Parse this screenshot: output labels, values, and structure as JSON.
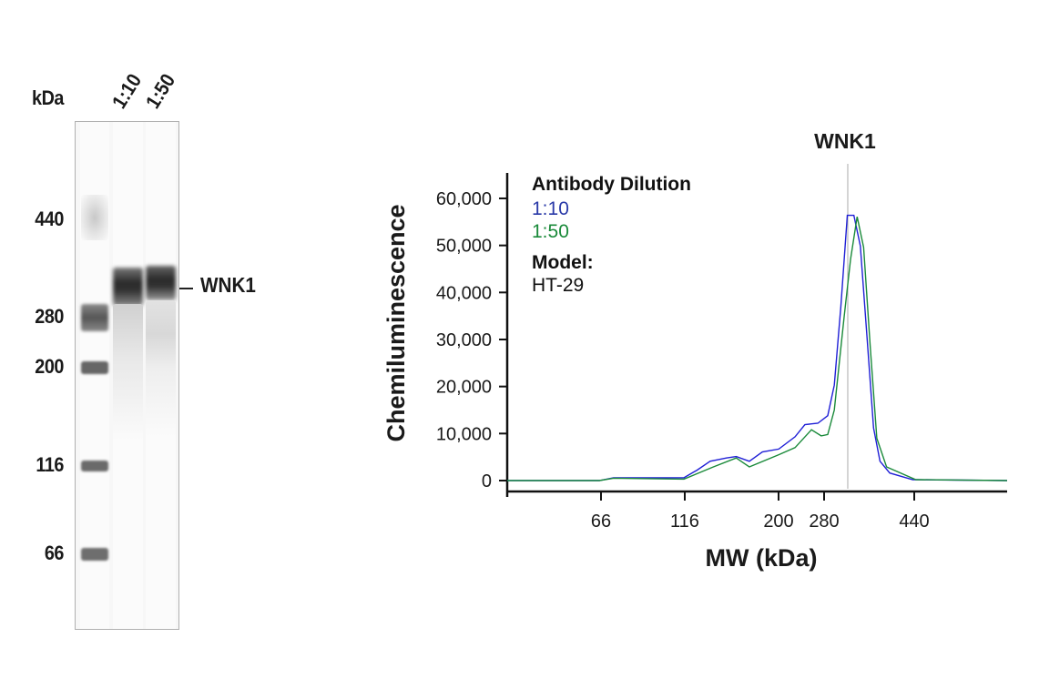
{
  "gel": {
    "unit_label": "kDa",
    "lane_labels": [
      "1:10",
      "1:50"
    ],
    "ladder_markers": [
      "440",
      "280",
      "200",
      "116",
      "66"
    ],
    "band_label": "WNK1"
  },
  "chart_data": {
    "type": "line",
    "title": "WNK1",
    "xlabel": "MW (kDa)",
    "ylabel": "Chemiluminescence",
    "x_ticks": [
      66,
      116,
      200,
      280,
      440
    ],
    "x_tick_labels": [
      "66",
      "116",
      "200",
      "280",
      "440"
    ],
    "y_ticks": [
      0,
      10000,
      20000,
      30000,
      40000,
      50000,
      60000
    ],
    "y_tick_labels": [
      "0",
      "10,000",
      "20,000",
      "30,000",
      "40,000",
      "50,000",
      "60,000"
    ],
    "xlim": [
      10,
      605
    ],
    "ylim": [
      -2300,
      66000
    ],
    "x_scale": "nonlinear (MW)",
    "grid": false,
    "reference_line_x": 322,
    "legend": {
      "placement": "top-left",
      "title": "Antibody Dilution",
      "model_label": "Model:",
      "model_value": "HT-29"
    },
    "series": [
      {
        "name": "1:10",
        "color": "#1f1fd6",
        "points": [
          [
            10,
            0
          ],
          [
            65,
            0
          ],
          [
            73.5,
            600
          ],
          [
            115.5,
            600
          ],
          [
            126.9,
            2200
          ],
          [
            138.7,
            4100
          ],
          [
            153.3,
            4800
          ],
          [
            162.1,
            5100
          ],
          [
            173.8,
            4100
          ],
          [
            185.5,
            6100
          ],
          [
            200.3,
            6700
          ],
          [
            229,
            9300
          ],
          [
            246.2,
            11900
          ],
          [
            269.1,
            12200
          ],
          [
            286.5,
            13800
          ],
          [
            298.1,
            20300
          ],
          [
            309.7,
            37000
          ],
          [
            321.2,
            56400
          ],
          [
            332.8,
            56400
          ],
          [
            344.4,
            49900
          ],
          [
            356.1,
            30600
          ],
          [
            367.7,
            11200
          ],
          [
            379.2,
            4100
          ],
          [
            396.6,
            1600
          ],
          [
            437.3,
            200
          ],
          [
            605,
            0
          ]
        ]
      },
      {
        "name": "1:50",
        "color": "#1a8a3a",
        "points": [
          [
            10,
            0
          ],
          [
            65,
            0
          ],
          [
            73.5,
            500
          ],
          [
            115.5,
            300
          ],
          [
            141.6,
            2900
          ],
          [
            162.1,
            4800
          ],
          [
            173.8,
            2900
          ],
          [
            200.3,
            5500
          ],
          [
            229,
            7000
          ],
          [
            257.8,
            10800
          ],
          [
            274.9,
            9500
          ],
          [
            286.5,
            9800
          ],
          [
            298.1,
            15000
          ],
          [
            315.5,
            34800
          ],
          [
            327,
            47100
          ],
          [
            338.6,
            56100
          ],
          [
            350.2,
            49600
          ],
          [
            361.9,
            28400
          ],
          [
            373.5,
            9000
          ],
          [
            390.8,
            2900
          ],
          [
            442.7,
            200
          ],
          [
            605,
            0
          ]
        ]
      }
    ]
  }
}
